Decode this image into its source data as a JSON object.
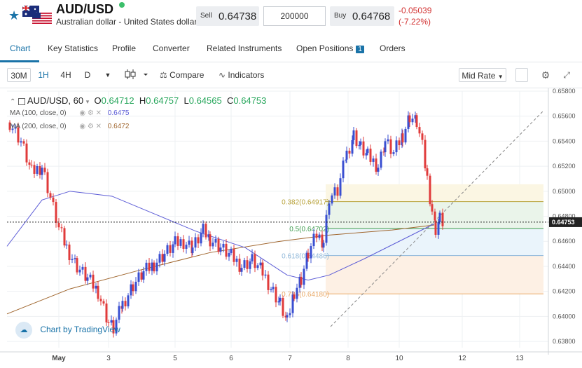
{
  "header": {
    "symbol": "AUD/USD",
    "description": "Australian dollar - United States dollar",
    "sell_label": "Sell",
    "sell_price": "0.64738",
    "quantity": "200000",
    "buy_label": "Buy",
    "buy_price": "0.64768",
    "change": "-0.05039",
    "change_pct": "(-7.22%)",
    "status_color": "#3cbf6b"
  },
  "tabs": [
    {
      "label": "Chart"
    },
    {
      "label": "Key Statistics"
    },
    {
      "label": "Profile"
    },
    {
      "label": "Converter"
    },
    {
      "label": "Related Instruments"
    },
    {
      "label": "Open Positions",
      "badge": "1"
    },
    {
      "label": "Orders"
    }
  ],
  "toolbar": {
    "intervals": [
      "30M",
      "1H",
      "4H",
      "D"
    ],
    "selected_interval": "1H",
    "compare_label": "Compare",
    "indicators_label": "Indicators",
    "price_type": "Mid Rate"
  },
  "legend": {
    "symbol_tf": "AUD/USD, 60",
    "o_label": "O",
    "o": "0.64712",
    "h_label": "H",
    "h": "0.64757",
    "l_label": "L",
    "l": "0.64565",
    "c_label": "C",
    "c": "0.64753",
    "ma100_label": "MA (100, close, 0)",
    "ma100_value": "0.6475",
    "ma200_label": "MA (200, close, 0)",
    "ma200_value": "0.6472"
  },
  "branding": "Chart by TradingView",
  "chart_data": {
    "type": "candlestick",
    "y_ticks": [
      "0.65800",
      "0.65600",
      "0.65400",
      "0.65200",
      "0.65000",
      "0.64800",
      "0.64600",
      "0.64400",
      "0.64200",
      "0.64000",
      "0.63800"
    ],
    "ylim": [
      0.6375,
      0.658
    ],
    "x_ticks": [
      "May",
      "3",
      "5",
      "6",
      "7",
      "8",
      "10",
      "12",
      "13"
    ],
    "current_price_label": "0.64753",
    "current_price": 0.64753,
    "fib_levels": [
      {
        "label": "0.382(0.64917)",
        "value": 0.64917,
        "color": "#b8a23a"
      },
      {
        "label": "0.5(0.64702)",
        "value": 0.64702,
        "color": "#3f9c4f"
      },
      {
        "label": "0.618(0.64486)",
        "value": 0.64486,
        "color": "#8fb7d9"
      },
      {
        "label": "0.786(0.64180)",
        "value": 0.6418,
        "color": "#e8a866"
      }
    ],
    "ma_colors": {
      "ma100": "#5b5bd6",
      "ma200": "#a0662e"
    },
    "up_color": "#3a4fd1",
    "down_color": "#e03b3b"
  }
}
